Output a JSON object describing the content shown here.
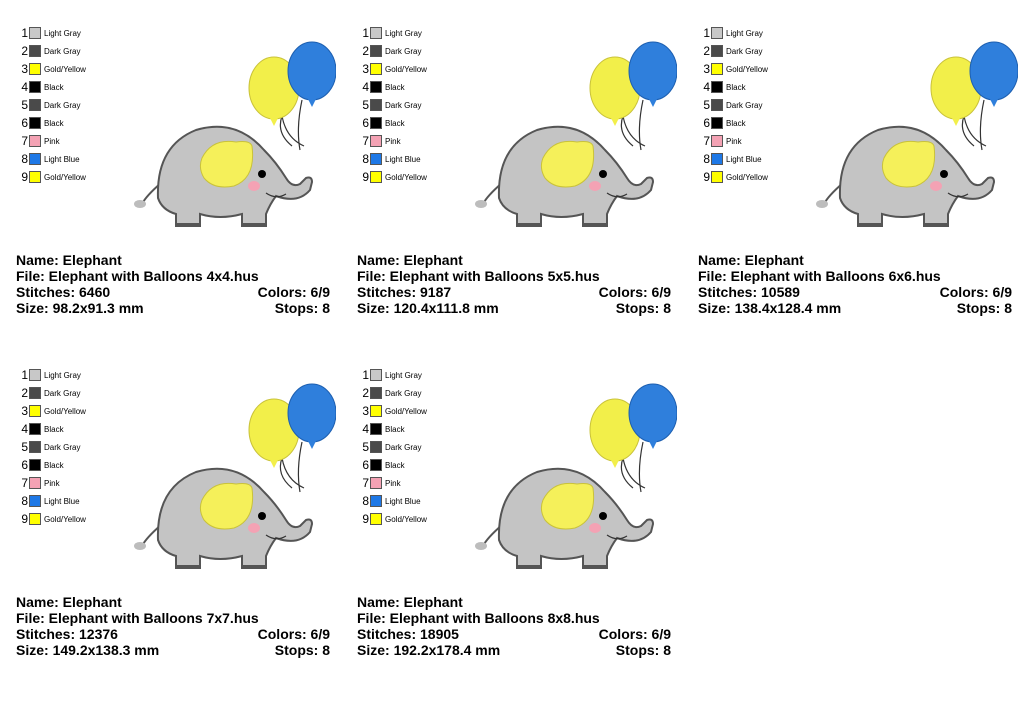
{
  "colors": [
    {
      "num": "1",
      "name": "Light Gray",
      "hex": "#c8c8c8"
    },
    {
      "num": "2",
      "name": "Dark Gray",
      "hex": "#4a4a4a"
    },
    {
      "num": "3",
      "name": "Gold/Yellow",
      "hex": "#ffff00"
    },
    {
      "num": "4",
      "name": "Black",
      "hex": "#000000"
    },
    {
      "num": "5",
      "name": "Dark Gray",
      "hex": "#4a4a4a"
    },
    {
      "num": "6",
      "name": "Black",
      "hex": "#000000"
    },
    {
      "num": "7",
      "name": "Pink",
      "hex": "#f4a2b4"
    },
    {
      "num": "8",
      "name": "Light Blue",
      "hex": "#1e78e6"
    },
    {
      "num": "9",
      "name": "Gold/Yellow",
      "hex": "#ffff00"
    }
  ],
  "cards": [
    {
      "name_line": "Name: Elephant",
      "file_line": "File: Elephant with Balloons 4x4.hus",
      "stitches_line": "Stitches: 6460",
      "colors_line": "Colors: 6/9",
      "size_line": "Size: 98.2x91.3 mm",
      "stops_line": "Stops: 8"
    },
    {
      "name_line": "Name: Elephant",
      "file_line": "File: Elephant with Balloons 5x5.hus",
      "stitches_line": "Stitches: 9187",
      "colors_line": "Colors: 6/9",
      "size_line": "Size: 120.4x111.8 mm",
      "stops_line": "Stops: 8"
    },
    {
      "name_line": "Name: Elephant",
      "file_line": "File: Elephant with Balloons 6x6.hus",
      "stitches_line": "Stitches: 10589",
      "colors_line": "Colors: 6/9",
      "size_line": "Size: 138.4x128.4 mm",
      "stops_line": "Stops: 8"
    },
    {
      "name_line": "Name: Elephant",
      "file_line": "File: Elephant with Balloons 7x7.hus",
      "stitches_line": "Stitches: 12376",
      "colors_line": "Colors: 6/9",
      "size_line": "Size: 149.2x138.3 mm",
      "stops_line": "Stops: 8"
    },
    {
      "name_line": "Name: Elephant",
      "file_line": "File: Elephant with Balloons 8x8.hus",
      "stitches_line": "Stitches: 18905",
      "colors_line": "Colors: 6/9",
      "size_line": "Size: 192.2x178.4 mm",
      "stops_line": "Stops: 8"
    }
  ],
  "art_colors": {
    "body": "#c4c4c4",
    "outline": "#555555",
    "ear": "#f5f05a",
    "yellow_balloon": "#f2ef4a",
    "blue_balloon": "#2f7fdc",
    "cheek": "#f4a2b4"
  }
}
